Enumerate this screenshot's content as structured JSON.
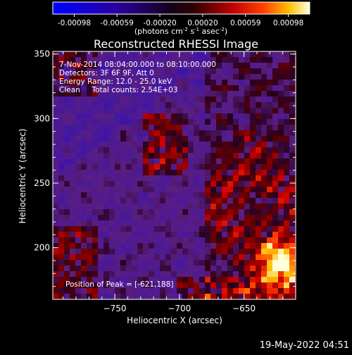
{
  "chart_data": {
    "type": "heatmap",
    "title": "Reconstructed RHESSI Image",
    "xlabel": "Heliocentric X (arcsec)",
    "ylabel": "Heliocentric Y (arcsec)",
    "xlim": [
      -798,
      -610
    ],
    "ylim": [
      160,
      352
    ],
    "xticks": [
      -750,
      -700,
      -650
    ],
    "yticks": [
      200,
      250,
      300,
      350
    ],
    "colorbar": {
      "ticks": [
        "-0.00098",
        "-0.00059",
        "-0.00020",
        "0.00020",
        "0.00059",
        "0.00098"
      ],
      "label_main": "(photons cm",
      "label_sup1": "-2",
      "label_mid1": " s",
      "label_sup2": "-1",
      "label_mid2": " asec",
      "label_sup3": "-2",
      "label_end": ")",
      "min": -0.00098,
      "max": 0.00098
    },
    "annotations": [
      "7-Nov-2014 08:04:00.000 to 08:10:00.000",
      "Detectors: 3F 6F 9F, Att 0",
      "Energy Range: 12.0 - 25.0 keV",
      "Clean     Total counts: 2.54E+03"
    ],
    "peak_label": "Position of Peak = [-621,188]",
    "peak": [
      -621,
      188
    ]
  },
  "footer": {
    "date": "19-May-2022 04:51"
  }
}
